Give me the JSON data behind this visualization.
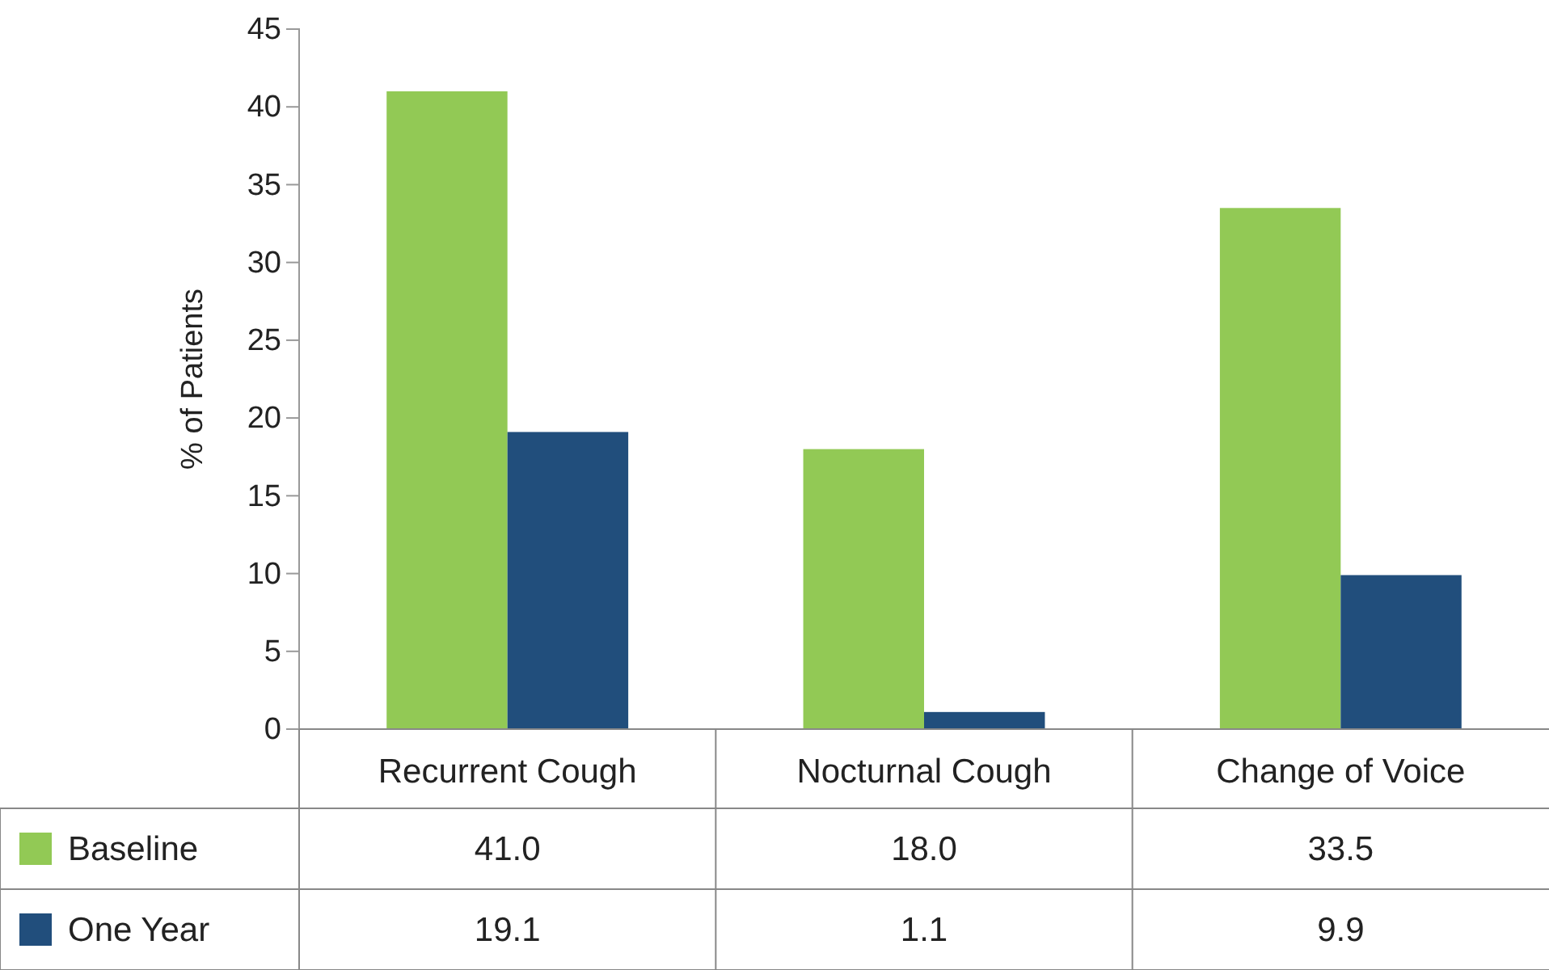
{
  "chart_data": {
    "type": "bar",
    "ylabel": "% of Patients",
    "categories": [
      "Recurrent Cough",
      "Nocturnal Cough",
      "Change of Voice"
    ],
    "series": [
      {
        "name": "Baseline",
        "color": "#92c955",
        "values": [
          41.0,
          18.0,
          33.5
        ],
        "value_labels": [
          "41.0",
          "18.0",
          "33.5"
        ]
      },
      {
        "name": "One Year",
        "color": "#214e7c",
        "values": [
          19.1,
          1.1,
          9.9
        ],
        "value_labels": [
          "19.1",
          "1.1",
          "9.9"
        ]
      }
    ],
    "ylim": [
      0,
      45
    ],
    "yticks": [
      0,
      5,
      10,
      15,
      20,
      25,
      30,
      35,
      40,
      45
    ],
    "grid": false,
    "legend": "bottom"
  }
}
